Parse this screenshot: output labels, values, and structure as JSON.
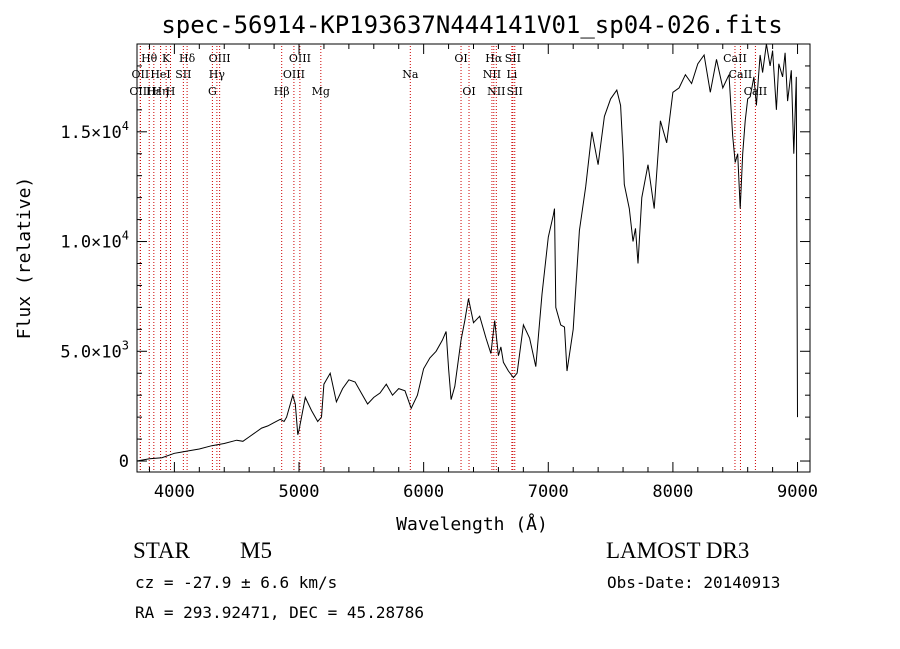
{
  "chart_data": {
    "type": "line",
    "title": "spec-56914-KP193637N444141V01_sp04-026.fits",
    "xlabel": "Wavelength (Å)",
    "ylabel": "Flux (relative)",
    "xlim": [
      3700,
      9100
    ],
    "ylim": [
      -500,
      19000
    ],
    "x_ticks": [
      4000,
      5000,
      6000,
      7000,
      8000,
      9000
    ],
    "x_tick_labels": [
      "4000",
      "5000",
      "6000",
      "7000",
      "8000",
      "9000"
    ],
    "y_ticks": [
      0,
      5000,
      10000,
      15000
    ],
    "y_tick_labels": [
      {
        "mant": "0",
        "exp": ""
      },
      {
        "mant": "5.0×10",
        "exp": "3"
      },
      {
        "mant": "1.0×10",
        "exp": "4"
      },
      {
        "mant": "1.5×10",
        "exp": "4"
      }
    ],
    "grid": false,
    "series": [
      {
        "name": "Flux",
        "x": [
          3700,
          3800,
          3900,
          4000,
          4050,
          4100,
          4200,
          4300,
          4400,
          4500,
          4550,
          4600,
          4650,
          4700,
          4750,
          4800,
          4850,
          4880,
          4900,
          4950,
          4970,
          4990,
          5000,
          5050,
          5100,
          5150,
          5180,
          5200,
          5250,
          5300,
          5350,
          5400,
          5450,
          5500,
          5550,
          5600,
          5650,
          5700,
          5750,
          5800,
          5850,
          5900,
          5950,
          6000,
          6050,
          6100,
          6150,
          6180,
          6200,
          6220,
          6250,
          6300,
          6330,
          6360,
          6400,
          6450,
          6500,
          6540,
          6570,
          6600,
          6620,
          6640,
          6680,
          6720,
          6750,
          6800,
          6850,
          6900,
          6950,
          7000,
          7040,
          7050,
          7060,
          7100,
          7130,
          7150,
          7200,
          7250,
          7300,
          7350,
          7400,
          7450,
          7500,
          7550,
          7580,
          7600,
          7610,
          7650,
          7680,
          7700,
          7720,
          7750,
          7800,
          7850,
          7900,
          7950,
          8000,
          8050,
          8100,
          8150,
          8200,
          8250,
          8300,
          8350,
          8400,
          8450,
          8480,
          8500,
          8520,
          8540,
          8560,
          8580,
          8600,
          8620,
          8650,
          8670,
          8700,
          8720,
          8750,
          8780,
          8800,
          8830,
          8850,
          8880,
          8900,
          8920,
          8950,
          8970,
          8990,
          9000
        ],
        "y": [
          0,
          100,
          150,
          350,
          400,
          450,
          550,
          700,
          800,
          950,
          900,
          1100,
          1300,
          1500,
          1600,
          1750,
          1900,
          1800,
          2000,
          3000,
          2600,
          1200,
          1400,
          2900,
          2300,
          1800,
          2000,
          3500,
          4000,
          2700,
          3300,
          3700,
          3600,
          3100,
          2600,
          2900,
          3100,
          3500,
          3000,
          3300,
          3200,
          2400,
          3000,
          4200,
          4700,
          5000,
          5500,
          5900,
          4200,
          2800,
          3400,
          5500,
          6400,
          7400,
          6300,
          6600,
          5600,
          4900,
          6400,
          4800,
          5200,
          4500,
          4100,
          3800,
          4000,
          6200,
          5600,
          4300,
          7600,
          10200,
          11200,
          11500,
          7000,
          6200,
          6100,
          4100,
          6000,
          10500,
          12500,
          15000,
          13500,
          15700,
          16500,
          16900,
          16200,
          14000,
          12600,
          11500,
          10000,
          10600,
          9000,
          12000,
          13500,
          11500,
          15500,
          14500,
          16800,
          17000,
          17600,
          17200,
          18100,
          18500,
          16800,
          18300,
          17000,
          17600,
          14800,
          13600,
          14000,
          11500,
          14000,
          15500,
          16500,
          16600,
          17500,
          16200,
          18500,
          17700,
          19000,
          18000,
          18700,
          16000,
          18100,
          17500,
          18600,
          16400,
          17800,
          14000,
          17500,
          2000
        ],
        "color": "#000000"
      }
    ],
    "annotations": {
      "line_color": "#cc0000",
      "lines": [
        {
          "label": "Hθ",
          "x": 3798,
          "row": 1
        },
        {
          "label": "OII",
          "x": 3727,
          "row": 2
        },
        {
          "label": "OIII",
          "x": 3727,
          "row": 3
        },
        {
          "label": "Hε",
          "x": 3835,
          "row": 3
        },
        {
          "label": "Hη",
          "x": 3889,
          "row": 3
        },
        {
          "label": "HeI",
          "x": 3889,
          "row": 2
        },
        {
          "label": "K",
          "x": 3934,
          "row": 1
        },
        {
          "label": "H",
          "x": 3969,
          "row": 3
        },
        {
          "label": "SII",
          "x": 4072,
          "row": 2
        },
        {
          "label": "Hδ",
          "x": 4102,
          "row": 1
        },
        {
          "label": "OIII",
          "x": 4363,
          "row": 1
        },
        {
          "label": "Hγ",
          "x": 4341,
          "row": 2
        },
        {
          "label": "G",
          "x": 4305,
          "row": 3
        },
        {
          "label": "Hβ",
          "x": 4861,
          "row": 3
        },
        {
          "label": "OIII",
          "x": 5007,
          "row": 1
        },
        {
          "label": "OIII",
          "x": 4959,
          "row": 2
        },
        {
          "label": "Mg",
          "x": 5175,
          "row": 3
        },
        {
          "label": "Na",
          "x": 5893,
          "row": 2
        },
        {
          "label": "OI",
          "x": 6300,
          "row": 1
        },
        {
          "label": "OI",
          "x": 6364,
          "row": 3
        },
        {
          "label": "Hα",
          "x": 6563,
          "row": 1
        },
        {
          "label": "SII",
          "x": 6716,
          "row": 1
        },
        {
          "label": "NII",
          "x": 6548,
          "row": 2
        },
        {
          "label": "Li",
          "x": 6708,
          "row": 2
        },
        {
          "label": "NII",
          "x": 6583,
          "row": 3
        },
        {
          "label": "SII",
          "x": 6731,
          "row": 3
        },
        {
          "label": "CaII",
          "x": 8498,
          "row": 1
        },
        {
          "label": "CaII",
          "x": 8542,
          "row": 2
        },
        {
          "label": "CaII",
          "x": 8662,
          "row": 3
        }
      ]
    }
  },
  "info": {
    "object_type": "STAR",
    "subclass": "M5",
    "survey": "LAMOST DR3",
    "redshift": "cz = -27.9 ± 6.6 km/s",
    "obs_date": "Obs-Date: 20140913",
    "coords": "RA = 293.92471, DEC =  45.28786"
  }
}
